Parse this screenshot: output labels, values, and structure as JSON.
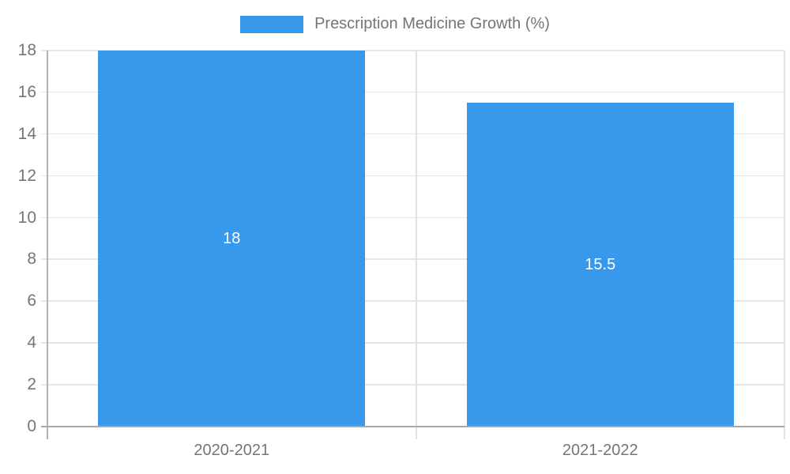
{
  "legend": {
    "label": "Prescription Medicine Growth (%)"
  },
  "colors": {
    "bar": "#3899EC",
    "bar_label": "#ffffff",
    "grid": "#e6e6e6",
    "grid_vertical": "#e2e2e2",
    "axis": "#b2b2b2",
    "baseline": "#a9a9a9",
    "tick_label": "#757575",
    "legend_label": "#757575"
  },
  "chart_data": {
    "type": "bar",
    "title": "Prescription Medicine Growth (%)",
    "categories": [
      "2020-2021",
      "2021-2022"
    ],
    "values": [
      18,
      15.5
    ],
    "bar_labels": [
      "18",
      "15.5"
    ],
    "xlabel": "",
    "ylabel": "",
    "ylim": [
      0,
      18
    ],
    "yticks": [
      0,
      2,
      4,
      6,
      8,
      10,
      12,
      14,
      16,
      18
    ],
    "grid": true,
    "legend_position": "top",
    "bar_label_position": "center"
  }
}
